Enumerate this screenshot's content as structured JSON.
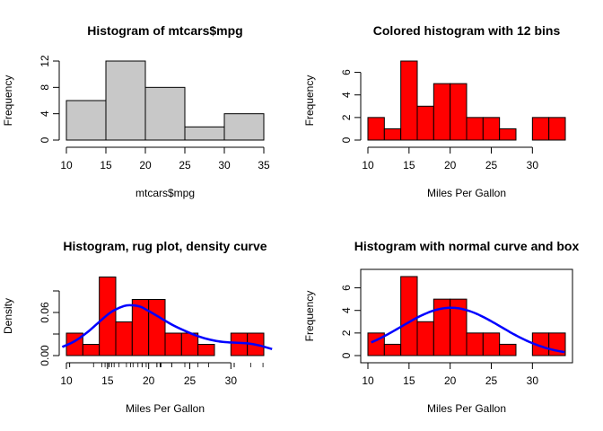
{
  "chart_data": [
    {
      "type": "bar",
      "title": "Histogram of mtcars$mpg",
      "xlabel": "mtcars$mpg",
      "ylabel": "Frequency",
      "breaks": [
        10,
        15,
        20,
        25,
        30,
        35
      ],
      "values": [
        6,
        12,
        8,
        2,
        4
      ],
      "fill": "#c8c8c8",
      "xlim": [
        10,
        35
      ],
      "ylim": [
        0,
        12
      ],
      "xticks": [
        10,
        15,
        20,
        25,
        30,
        35
      ],
      "yticks": [
        0,
        4,
        8,
        12
      ],
      "box": false
    },
    {
      "type": "bar",
      "title": "Colored histogram with 12 bins",
      "xlabel": "Miles Per Gallon",
      "ylabel": "Frequency",
      "breaks": [
        10,
        12,
        14,
        16,
        18,
        20,
        22,
        24,
        26,
        28,
        30,
        32,
        34
      ],
      "values": [
        2,
        1,
        7,
        3,
        5,
        5,
        2,
        2,
        1,
        0,
        2,
        2
      ],
      "fill": "#ff0000",
      "xlim": [
        10,
        34
      ],
      "ylim": [
        0,
        7
      ],
      "xticks": [
        10,
        15,
        20,
        25,
        30
      ],
      "yticks": [
        0,
        2,
        4,
        6
      ],
      "box": false
    },
    {
      "type": "bar",
      "title": "Histogram, rug plot, density curve",
      "xlabel": "Miles Per Gallon",
      "ylabel": "Density",
      "breaks": [
        10,
        12,
        14,
        16,
        18,
        20,
        22,
        24,
        26,
        28,
        30,
        32,
        34
      ],
      "values": [
        0.03125,
        0.015625,
        0.109375,
        0.046875,
        0.078125,
        0.078125,
        0.03125,
        0.03125,
        0.015625,
        0,
        0.03125,
        0.03125
      ],
      "fill": "#ff0000",
      "xlim": [
        10,
        34
      ],
      "ylim": [
        0,
        0.11
      ],
      "xticks": [
        10,
        15,
        20,
        25,
        30
      ],
      "yticks": [
        0.0,
        0.03,
        0.06,
        0.09
      ],
      "ytick_labels": [
        "0.00",
        "",
        "0.06",
        ""
      ],
      "rug": [
        21.0,
        21.0,
        22.8,
        21.4,
        18.7,
        18.1,
        14.3,
        24.4,
        22.8,
        19.2,
        17.8,
        16.4,
        17.3,
        15.2,
        10.4,
        10.4,
        14.7,
        32.4,
        30.4,
        33.9,
        21.5,
        15.5,
        15.2,
        13.3,
        19.2,
        27.3,
        26.0,
        30.4,
        15.8,
        19.7,
        15.0,
        21.4
      ],
      "curve": {
        "name": "density",
        "color": "#0000ff",
        "x": [
          9.5,
          11,
          12.5,
          14,
          15.5,
          17,
          18,
          19,
          20,
          21.5,
          23,
          24.5,
          26,
          27.5,
          29,
          30.5,
          32,
          33.5,
          35
        ],
        "y": [
          0.012,
          0.02,
          0.032,
          0.047,
          0.061,
          0.069,
          0.07,
          0.068,
          0.062,
          0.052,
          0.042,
          0.034,
          0.027,
          0.022,
          0.019,
          0.018,
          0.017,
          0.014,
          0.009
        ]
      },
      "box": false
    },
    {
      "type": "bar",
      "title": "Histogram with normal curve and box",
      "xlabel": "Miles Per Gallon",
      "ylabel": "Frequency",
      "breaks": [
        10,
        12,
        14,
        16,
        18,
        20,
        22,
        24,
        26,
        28,
        30,
        32,
        34
      ],
      "values": [
        2,
        1,
        7,
        3,
        5,
        5,
        2,
        2,
        1,
        0,
        2,
        2
      ],
      "fill": "#ff0000",
      "xlim": [
        10,
        34
      ],
      "ylim": [
        0,
        7
      ],
      "xticks": [
        10,
        15,
        20,
        25,
        30
      ],
      "yticks": [
        0,
        2,
        4,
        6
      ],
      "curve": {
        "name": "normal",
        "color": "#0000ff",
        "mean": 20.09,
        "sd": 6.03,
        "scale": 64,
        "from": 10.4,
        "to": 33.9
      },
      "box": true
    }
  ]
}
